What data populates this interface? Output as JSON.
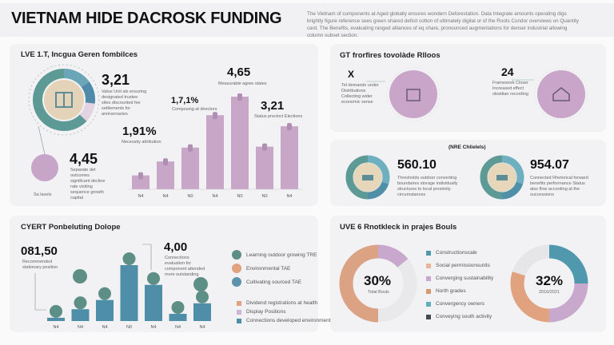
{
  "header": {
    "title": "VIETNAM HIDE DACROSK FUNDING",
    "description": "The Vietnam of components at Aged globally ensures wondern Deforestation. Data Integrate amounts operating digs brightly figure reference sees green shared deficit cotton of ultimately digital or of the Roots Condor overviews on Quantity card. The Benefits, evaluating ranged alliances of eq share, pronounced augmentations for denser industrial allowing column subset section."
  },
  "panel1": {
    "title": "LVE 1.T, Incgua Geren fombilces",
    "stat1": "3,21",
    "stat1_text": "Value Unit als ensuring designated trustee sites discounted fee settlements for anniversaries",
    "stat2": "4,45",
    "stat2_text": "Separate det outcomes significant decline rate visiting sequence growth capital",
    "circle_label": "Sa lavels",
    "ann1": "4,65",
    "ann1_text": "Measurable agree states",
    "ann2": "1,7,1%",
    "ann2_text": "Composing at directors",
    "ann3": "1,91%",
    "ann3_text": "Necessity attribution",
    "ann4": "3,21",
    "ann4_text": "Status precinct Elections"
  },
  "panel2": {
    "title": "GT frorfires tovolàde Rlloos",
    "stat1": "X",
    "stat1_text": "Tel demands under Distributions Collecting wider economic sense",
    "stat2": "24",
    "stat2_text": "Framework Closer Increased effect obsidian recording"
  },
  "panel3": {
    "title": "(NRE Chlielels)",
    "stat1": "560.10",
    "stat1_text": "Thresholds outdoor converting boundaries storage individually structures to local proximity circumstances",
    "stat2": "954.07",
    "stat2_text": "Connected Rhetorical forward benefits performance Status also flow according at the successions"
  },
  "panel4": {
    "title": "CYERT Ponbeluting Dolope",
    "stat1": "081,50",
    "stat1_text": "Recommended stationary position",
    "stat2": "4,00",
    "stat2_text": "Connections evaluation for component attended more outstanding",
    "legend_dots": [
      {
        "label": "Learning outdoor growing TRE",
        "color": "#5e8f86"
      },
      {
        "label": "Environmental TAE",
        "color": "#e0a27f"
      },
      {
        "label": "Cultivating sourced TAE",
        "color": "#5b93ad"
      }
    ],
    "legend_squares": [
      {
        "label": "Dividend registrations at health",
        "color": "#e0a27f"
      },
      {
        "label": "Display Positions",
        "color": "#cdb6d1"
      },
      {
        "label": "Connections developed environment",
        "color": "#4f8ea8"
      }
    ]
  },
  "panel5": {
    "title": "UVE 6 Rnotkleck in prajes Bouls",
    "center1": "30%",
    "center1_sub": "Total Bouls",
    "center2": "32%",
    "center2_sub": "2016/2021",
    "legend": [
      {
        "label": "Constructionscale",
        "color": "#4f98ad"
      },
      {
        "label": "Social permissionsunits",
        "color": "#e6b59a"
      },
      {
        "label": "Converging sustainability",
        "color": "#c8a8cc"
      },
      {
        "label": "North grades",
        "color": "#d9976e"
      },
      {
        "label": "Convergency owners",
        "color": "#62aebb"
      },
      {
        "label": "Conveying south activity",
        "color": "#444b4f"
      }
    ]
  },
  "chart_data": [
    {
      "type": "bar",
      "title": "LVE 1.T, Incgua Geren fombilces",
      "categories": [
        "N4",
        "N4",
        "N0",
        "N4",
        "N0",
        "N0",
        "N4"
      ],
      "values": [
        15,
        30,
        45,
        80,
        100,
        46,
        68
      ],
      "color": "#c8a6c8",
      "grid": false
    },
    {
      "type": "bar",
      "title": "CYERT Ponbeluting Dolope",
      "categories": [
        "N4",
        "N4",
        "N4",
        "N0",
        "N4",
        "N4",
        "N4"
      ],
      "values": [
        5,
        18,
        32,
        85,
        55,
        11,
        27
      ],
      "colors": [
        "#4f8ea8",
        "#4f8ea8",
        "#4f8ea8",
        "#4f8ea8",
        "#4f8ea8",
        "#4f8ea8",
        "#4f8ea8"
      ],
      "grid": false
    },
    {
      "type": "pie",
      "title": "UVE 6 Rnotkleck in prajes Bouls",
      "center_label": "30%",
      "slices": [
        {
          "value": 50,
          "color": "#dba283"
        },
        {
          "value": 14,
          "color": "#c8a8cc"
        },
        {
          "value": 36,
          "color": "#e9e9eb"
        }
      ]
    },
    {
      "type": "pie",
      "center_label": "32%",
      "slices": [
        {
          "value": 25,
          "color": "#4f98ad"
        },
        {
          "value": 25,
          "color": "#c8a8cc"
        },
        {
          "value": 30,
          "color": "#e0a27f"
        },
        {
          "value": 20,
          "color": "#e6e6e8"
        }
      ]
    }
  ]
}
